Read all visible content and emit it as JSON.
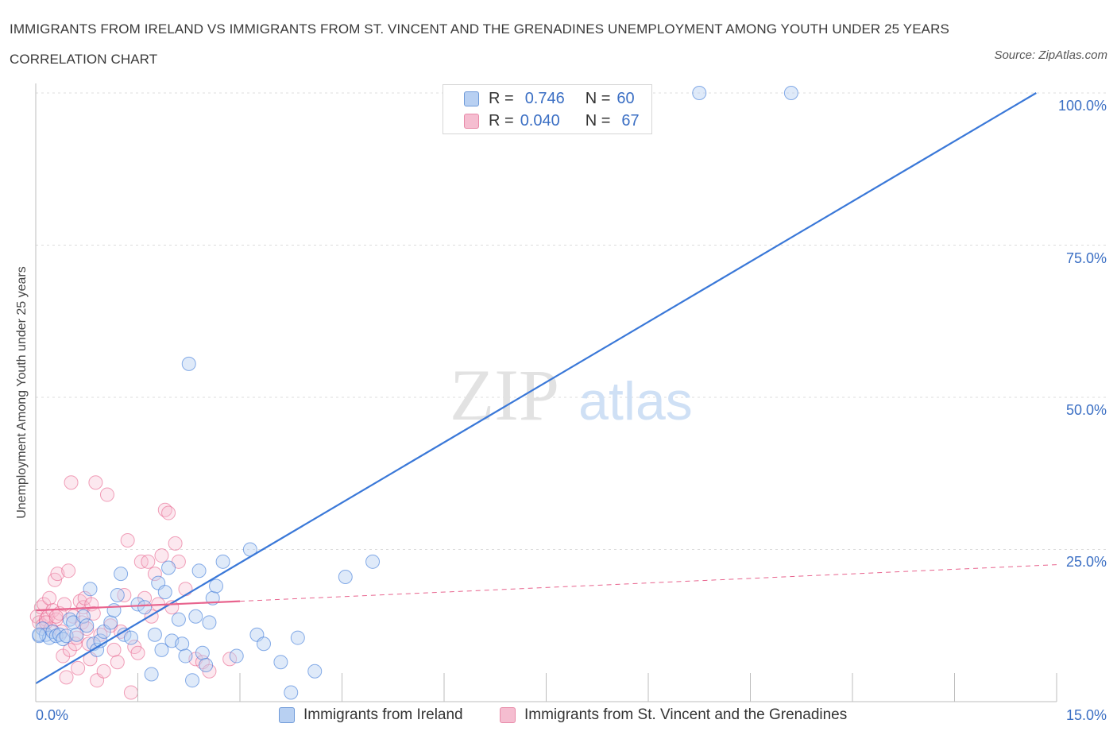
{
  "title": "IMMIGRANTS FROM IRELAND VS IMMIGRANTS FROM ST. VINCENT AND THE GRENADINES UNEMPLOYMENT AMONG YOUTH UNDER 25 YEARS CORRELATION CHART",
  "source": "Source: ZipAtlas.com",
  "colors": {
    "blue": "#3a78d8",
    "blue_fill": "#b8d0f2",
    "pink": "#e8648e",
    "pink_fill": "#f5bdd0",
    "tick": "#3b6fc4"
  },
  "legend": {
    "r_label": "R =",
    "n_label": "N =",
    "series1": {
      "r": "0.746",
      "n": "60"
    },
    "series2": {
      "r": "0.040",
      "n": "67"
    }
  },
  "watermark": {
    "zip": "ZIP",
    "atlas": "atlas"
  },
  "chart_data": {
    "type": "scatter",
    "xlabel": "",
    "ylabel": "Unemployment Among Youth under 25 years",
    "xlim": [
      0,
      15
    ],
    "ylim": [
      0,
      100
    ],
    "x_tick_labels": [
      "0.0%",
      "15.0%"
    ],
    "y_ticks": [
      25,
      50,
      75,
      100
    ],
    "y_tick_labels": [
      "25.0%",
      "50.0%",
      "75.0%",
      "100.0%"
    ],
    "grid": true,
    "series": [
      {
        "name": "Immigrants from Ireland",
        "trendline": {
          "x": [
            0,
            14.7
          ],
          "y": [
            3,
            100
          ]
        },
        "points": [
          [
            0.05,
            10.8
          ],
          [
            0.1,
            12
          ],
          [
            0.15,
            11
          ],
          [
            0.2,
            10.5
          ],
          [
            0.25,
            11.5
          ],
          [
            0.3,
            10.8
          ],
          [
            0.35,
            11
          ],
          [
            0.4,
            10.3
          ],
          [
            0.45,
            10.8
          ],
          [
            0.5,
            13.5
          ],
          [
            0.55,
            13
          ],
          [
            0.6,
            11
          ],
          [
            0.7,
            14
          ],
          [
            0.75,
            12.5
          ],
          [
            0.8,
            18.5
          ],
          [
            0.85,
            9.5
          ],
          [
            0.9,
            8.5
          ],
          [
            0.95,
            10
          ],
          [
            1.0,
            11.5
          ],
          [
            1.1,
            13
          ],
          [
            1.15,
            15
          ],
          [
            1.2,
            17.5
          ],
          [
            1.25,
            21
          ],
          [
            1.3,
            11
          ],
          [
            1.4,
            10.5
          ],
          [
            1.5,
            16
          ],
          [
            1.6,
            15.5
          ],
          [
            1.7,
            4.5
          ],
          [
            1.75,
            11
          ],
          [
            1.8,
            19.5
          ],
          [
            1.85,
            8.5
          ],
          [
            1.9,
            18
          ],
          [
            1.95,
            22
          ],
          [
            2.0,
            10
          ],
          [
            2.1,
            13.5
          ],
          [
            2.15,
            9.5
          ],
          [
            2.2,
            7.5
          ],
          [
            2.25,
            55.5
          ],
          [
            2.3,
            3.5
          ],
          [
            2.35,
            14
          ],
          [
            2.4,
            21.5
          ],
          [
            2.45,
            8
          ],
          [
            2.5,
            6
          ],
          [
            2.55,
            13
          ],
          [
            2.6,
            17
          ],
          [
            2.65,
            19
          ],
          [
            2.75,
            23
          ],
          [
            2.95,
            7.5
          ],
          [
            3.15,
            25
          ],
          [
            3.25,
            11
          ],
          [
            3.35,
            9.5
          ],
          [
            3.6,
            6.5
          ],
          [
            3.75,
            1.5
          ],
          [
            3.85,
            10.5
          ],
          [
            4.1,
            5
          ],
          [
            4.55,
            20.5
          ],
          [
            4.95,
            23
          ],
          [
            9.75,
            100
          ],
          [
            11.1,
            100
          ],
          [
            0.05,
            11
          ]
        ]
      },
      {
        "name": "Immigrants from St. Vincent and the Grenadines",
        "trendline": {
          "x": [
            0,
            3.0
          ],
          "y": [
            15,
            16.5
          ]
        },
        "trendline_dashed": {
          "x": [
            3.0,
            15
          ],
          "y": [
            16.5,
            22.5
          ]
        },
        "points": [
          [
            0.02,
            14
          ],
          [
            0.05,
            13
          ],
          [
            0.08,
            15.5
          ],
          [
            0.1,
            12.5
          ],
          [
            0.12,
            16
          ],
          [
            0.15,
            13.5
          ],
          [
            0.18,
            14
          ],
          [
            0.2,
            17
          ],
          [
            0.22,
            12
          ],
          [
            0.25,
            15
          ],
          [
            0.28,
            20
          ],
          [
            0.3,
            13.5
          ],
          [
            0.32,
            21
          ],
          [
            0.35,
            14.5
          ],
          [
            0.38,
            11.5
          ],
          [
            0.4,
            7.5
          ],
          [
            0.42,
            16
          ],
          [
            0.45,
            4
          ],
          [
            0.48,
            21.5
          ],
          [
            0.5,
            8.5
          ],
          [
            0.52,
            36
          ],
          [
            0.55,
            14
          ],
          [
            0.58,
            9.5
          ],
          [
            0.6,
            10.5
          ],
          [
            0.62,
            5.5
          ],
          [
            0.65,
            16.5
          ],
          [
            0.68,
            13
          ],
          [
            0.7,
            15.5
          ],
          [
            0.72,
            17
          ],
          [
            0.75,
            12
          ],
          [
            0.78,
            9.5
          ],
          [
            0.8,
            7
          ],
          [
            0.82,
            16
          ],
          [
            0.85,
            14.5
          ],
          [
            0.88,
            36
          ],
          [
            0.9,
            3.5
          ],
          [
            0.95,
            11
          ],
          [
            1.0,
            5
          ],
          [
            1.05,
            34
          ],
          [
            1.1,
            12.5
          ],
          [
            1.15,
            8.5
          ],
          [
            1.2,
            6.5
          ],
          [
            1.25,
            11.5
          ],
          [
            1.3,
            17.5
          ],
          [
            1.35,
            26.5
          ],
          [
            1.4,
            1.5
          ],
          [
            1.45,
            9
          ],
          [
            1.5,
            8
          ],
          [
            1.55,
            23
          ],
          [
            1.6,
            17
          ],
          [
            1.65,
            23
          ],
          [
            1.7,
            14
          ],
          [
            1.75,
            21
          ],
          [
            1.8,
            16
          ],
          [
            1.85,
            24
          ],
          [
            1.9,
            31.5
          ],
          [
            1.95,
            31
          ],
          [
            2.0,
            15.5
          ],
          [
            2.05,
            26
          ],
          [
            2.1,
            23
          ],
          [
            2.2,
            18.5
          ],
          [
            2.35,
            7
          ],
          [
            2.45,
            6.5
          ],
          [
            2.55,
            5
          ],
          [
            2.85,
            7
          ],
          [
            0.15,
            13
          ],
          [
            0.3,
            14
          ]
        ]
      }
    ]
  },
  "bottom_legend": {
    "series1": "Immigrants from Ireland",
    "series2": "Immigrants from St. Vincent and the Grenadines"
  }
}
